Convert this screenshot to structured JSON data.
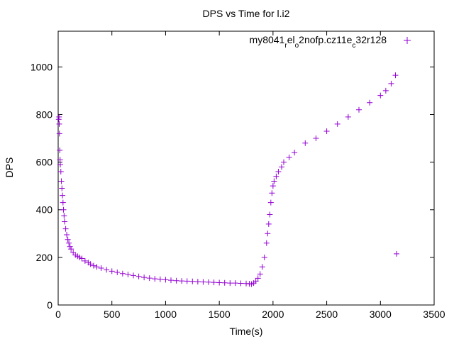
{
  "chart_data": {
    "type": "scatter",
    "title": "DPS vs Time for l.i2",
    "xlabel": "Time(s)",
    "ylabel": "DPS",
    "xlim": [
      0,
      3500
    ],
    "ylim": [
      0,
      1150
    ],
    "xticks": [
      0,
      500,
      1000,
      1500,
      2000,
      2500,
      3000,
      3500
    ],
    "yticks": [
      0,
      200,
      400,
      600,
      800,
      1000
    ],
    "grid": false,
    "legend_position": "top-right",
    "marker": "+",
    "color": "#9400d3",
    "series": [
      {
        "name_parts": [
          {
            "text": "my8041",
            "sub": false
          },
          {
            "text": "r",
            "sub": true
          },
          {
            "text": "el",
            "sub": false
          },
          {
            "text": "o",
            "sub": true
          },
          {
            "text": "2nofp.cz11e",
            "sub": false
          },
          {
            "text": "c",
            "sub": true
          },
          {
            "text": "32r128",
            "sub": false
          }
        ],
        "points": [
          [
            5,
            780
          ],
          [
            8,
            790
          ],
          [
            10,
            760
          ],
          [
            12,
            720
          ],
          [
            15,
            650
          ],
          [
            18,
            610
          ],
          [
            20,
            590
          ],
          [
            25,
            560
          ],
          [
            30,
            520
          ],
          [
            35,
            490
          ],
          [
            40,
            460
          ],
          [
            45,
            430
          ],
          [
            50,
            400
          ],
          [
            55,
            375
          ],
          [
            60,
            350
          ],
          [
            70,
            320
          ],
          [
            80,
            295
          ],
          [
            90,
            275
          ],
          [
            100,
            260
          ],
          [
            110,
            245
          ],
          [
            120,
            235
          ],
          [
            140,
            220
          ],
          [
            160,
            210
          ],
          [
            180,
            205
          ],
          [
            200,
            200
          ],
          [
            220,
            195
          ],
          [
            250,
            185
          ],
          [
            280,
            178
          ],
          [
            300,
            172
          ],
          [
            330,
            165
          ],
          [
            360,
            160
          ],
          [
            400,
            155
          ],
          [
            450,
            148
          ],
          [
            500,
            142
          ],
          [
            550,
            137
          ],
          [
            600,
            132
          ],
          [
            650,
            128
          ],
          [
            700,
            124
          ],
          [
            750,
            120
          ],
          [
            800,
            116
          ],
          [
            850,
            113
          ],
          [
            900,
            110
          ],
          [
            950,
            108
          ],
          [
            1000,
            106
          ],
          [
            1050,
            104
          ],
          [
            1100,
            102
          ],
          [
            1150,
            101
          ],
          [
            1200,
            100
          ],
          [
            1250,
            99
          ],
          [
            1300,
            98
          ],
          [
            1350,
            97
          ],
          [
            1400,
            96
          ],
          [
            1450,
            95
          ],
          [
            1500,
            94
          ],
          [
            1550,
            93
          ],
          [
            1600,
            92
          ],
          [
            1650,
            92
          ],
          [
            1700,
            91
          ],
          [
            1750,
            90
          ],
          [
            1780,
            89
          ],
          [
            1800,
            88
          ],
          [
            1820,
            92
          ],
          [
            1840,
            100
          ],
          [
            1860,
            112
          ],
          [
            1880,
            130
          ],
          [
            1900,
            160
          ],
          [
            1920,
            200
          ],
          [
            1940,
            260
          ],
          [
            1950,
            300
          ],
          [
            1960,
            340
          ],
          [
            1970,
            380
          ],
          [
            1980,
            430
          ],
          [
            1990,
            470
          ],
          [
            2000,
            500
          ],
          [
            2010,
            520
          ],
          [
            2030,
            540
          ],
          [
            2050,
            560
          ],
          [
            2080,
            580
          ],
          [
            2100,
            600
          ],
          [
            2150,
            620
          ],
          [
            2200,
            640
          ],
          [
            2300,
            680
          ],
          [
            2400,
            700
          ],
          [
            2500,
            730
          ],
          [
            2600,
            760
          ],
          [
            2700,
            790
          ],
          [
            2800,
            820
          ],
          [
            2900,
            850
          ],
          [
            3000,
            880
          ],
          [
            3050,
            900
          ],
          [
            3100,
            930
          ],
          [
            3140,
            965
          ],
          [
            3150,
            215
          ]
        ]
      }
    ]
  }
}
